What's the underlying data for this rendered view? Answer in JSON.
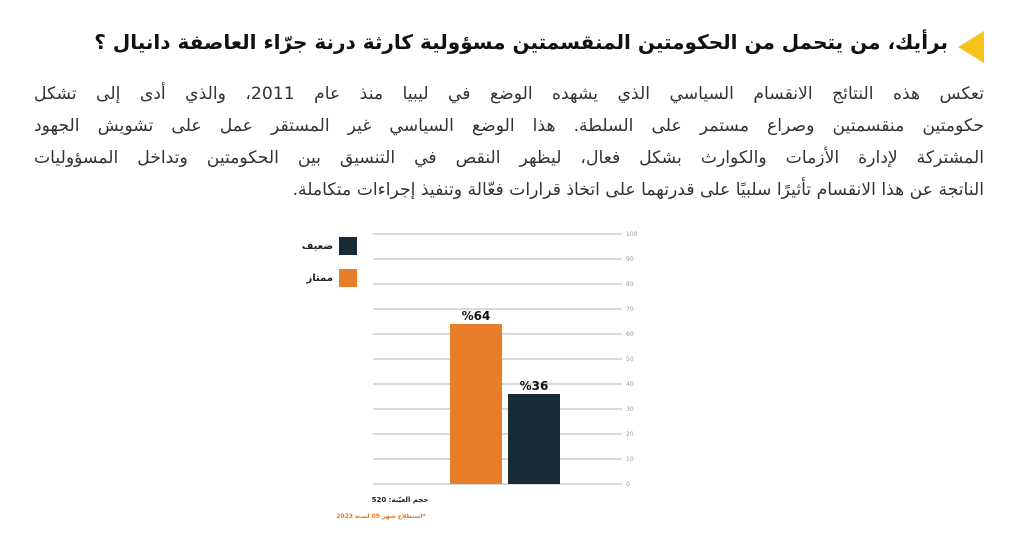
{
  "header": {
    "title": "برأيك، من يتحمل من الحكومتين المنقسمتين مسؤولية كارثة درنة جرّاء العاصفة دانيال ؟"
  },
  "paragraph": {
    "lines": [
      "تعكس هذه النتائج الانقسام السياسي الذي يشهده الوضع في ليبيا منذ عام 2011، والذي أدى إلى تشكل",
      "حكومتين منقسمتين وصراع مستمر على السلطة. هذا الوضع السياسي غير المستقر عمل على تشويش الجهود",
      "المشتركة لإدارة الأزمات والكوارث بشكل فعال، ليظهر النقص في التنسيق بين الحكومتين وتداخل المسؤوليات",
      "الناتجة عن هذا الانقسام تأثيرًا سلبيًا على قدرتهما على اتخاذ قرارات فعّالة وتنفيذ إجراءات متكاملة."
    ]
  },
  "chart_data": {
    "type": "bar",
    "categories": [
      "ممتاز",
      "ضعيف"
    ],
    "values": [
      64,
      36
    ],
    "value_labels": [
      "%64",
      "%36"
    ],
    "colors": [
      "#e87d2a",
      "#172a36"
    ],
    "ylim": [
      0,
      100
    ],
    "yticks": [
      0,
      10,
      20,
      30,
      40,
      50,
      60,
      70,
      80,
      90,
      100
    ],
    "grid": true,
    "legend": {
      "placement": "top-left",
      "entries": [
        {
          "name": "ضعيف",
          "color": "#172a36"
        },
        {
          "name": "ممتاز",
          "color": "#e87d2a"
        }
      ]
    },
    "sample_note": "حجم العيّنة: 520",
    "survey_note": "*استطلاع شهر 09 لسنة 2023"
  }
}
